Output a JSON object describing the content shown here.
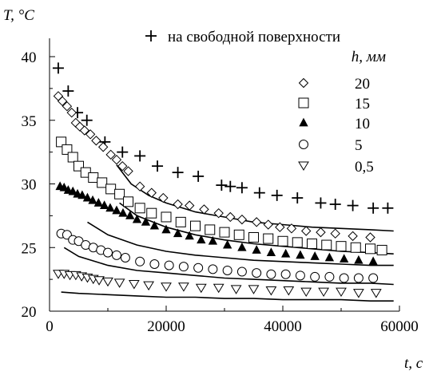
{
  "chart_data": {
    "type": "scatter",
    "xlabel": "t, с",
    "ylabel": "T, °С",
    "xlim": [
      0,
      60000
    ],
    "ylim": [
      20,
      42
    ],
    "x_ticks": [
      "0",
      "20000",
      "40000",
      "60000"
    ],
    "y_ticks": [
      "20",
      "25",
      "30",
      "35",
      "40"
    ],
    "legend_title": "h, мм",
    "legend_position": "top-right",
    "grid": false,
    "series": [
      {
        "name": "на свободной поверхности",
        "marker": "plus",
        "points": [
          [
            1500,
            39.1
          ],
          [
            3200,
            37.3
          ],
          [
            4800,
            35.6
          ],
          [
            6400,
            35.0
          ],
          [
            9500,
            33.3
          ],
          [
            12500,
            32.5
          ],
          [
            15500,
            32.2
          ],
          [
            18500,
            31.4
          ],
          [
            22000,
            30.9
          ],
          [
            25500,
            30.6
          ],
          [
            29500,
            29.9
          ],
          [
            31000,
            29.8
          ],
          [
            33000,
            29.7
          ],
          [
            36000,
            29.3
          ],
          [
            39000,
            29.1
          ],
          [
            42500,
            28.9
          ],
          [
            46500,
            28.5
          ],
          [
            49000,
            28.4
          ],
          [
            52000,
            28.3
          ],
          [
            55500,
            28.1
          ],
          [
            58000,
            28.1
          ]
        ]
      },
      {
        "name": "20",
        "marker": "diamond",
        "points": [
          [
            1500,
            36.9
          ],
          [
            2200,
            36.5
          ],
          [
            3000,
            36.1
          ],
          [
            3800,
            35.6
          ],
          [
            4500,
            34.8
          ],
          [
            5200,
            34.5
          ],
          [
            6000,
            34.2
          ],
          [
            7000,
            33.9
          ],
          [
            8000,
            33.4
          ],
          [
            9200,
            32.9
          ],
          [
            10500,
            32.3
          ],
          [
            11500,
            31.9
          ],
          [
            12500,
            31.4
          ],
          [
            13500,
            31.0
          ],
          [
            15500,
            29.8
          ],
          [
            17500,
            29.3
          ],
          [
            19500,
            28.9
          ],
          [
            22000,
            28.4
          ],
          [
            24000,
            28.3
          ],
          [
            26500,
            28.0
          ],
          [
            29000,
            27.7
          ],
          [
            31000,
            27.4
          ],
          [
            33000,
            27.2
          ],
          [
            35500,
            27.0
          ],
          [
            37500,
            26.8
          ],
          [
            39500,
            26.6
          ],
          [
            41500,
            26.5
          ],
          [
            44000,
            26.3
          ],
          [
            46500,
            26.2
          ],
          [
            49000,
            26.1
          ],
          [
            52000,
            25.9
          ],
          [
            55000,
            25.8
          ]
        ]
      },
      {
        "name": "15",
        "marker": "square",
        "points": [
          [
            2000,
            33.3
          ],
          [
            3000,
            32.7
          ],
          [
            4000,
            32.1
          ],
          [
            5000,
            31.4
          ],
          [
            6200,
            30.9
          ],
          [
            7500,
            30.5
          ],
          [
            9000,
            30.1
          ],
          [
            10500,
            29.6
          ],
          [
            12000,
            29.2
          ],
          [
            13500,
            28.6
          ],
          [
            15500,
            28.1
          ],
          [
            17500,
            27.7
          ],
          [
            20000,
            27.4
          ],
          [
            22500,
            27.0
          ],
          [
            25000,
            26.7
          ],
          [
            27500,
            26.4
          ],
          [
            30000,
            26.2
          ],
          [
            32500,
            26.0
          ],
          [
            35000,
            25.8
          ],
          [
            37500,
            25.7
          ],
          [
            40000,
            25.5
          ],
          [
            42500,
            25.4
          ],
          [
            45000,
            25.3
          ],
          [
            47500,
            25.2
          ],
          [
            50000,
            25.1
          ],
          [
            52500,
            25.0
          ],
          [
            55000,
            24.9
          ],
          [
            57000,
            24.8
          ]
        ]
      },
      {
        "name": "10",
        "marker": "triangle-up",
        "points": [
          [
            1800,
            29.8
          ],
          [
            2500,
            29.7
          ],
          [
            3200,
            29.5
          ],
          [
            4000,
            29.4
          ],
          [
            4800,
            29.2
          ],
          [
            5600,
            29.1
          ],
          [
            6500,
            28.9
          ],
          [
            7400,
            28.7
          ],
          [
            8400,
            28.5
          ],
          [
            9400,
            28.3
          ],
          [
            10400,
            28.1
          ],
          [
            11500,
            27.9
          ],
          [
            12600,
            27.7
          ],
          [
            13800,
            27.5
          ],
          [
            15000,
            27.2
          ],
          [
            16500,
            27.0
          ],
          [
            18000,
            26.7
          ],
          [
            20000,
            26.4
          ],
          [
            22000,
            26.1
          ],
          [
            24000,
            25.9
          ],
          [
            26000,
            25.6
          ],
          [
            28000,
            25.5
          ],
          [
            30500,
            25.2
          ],
          [
            33000,
            25.0
          ],
          [
            35500,
            24.8
          ],
          [
            38000,
            24.6
          ],
          [
            40500,
            24.5
          ],
          [
            43000,
            24.4
          ],
          [
            45500,
            24.3
          ],
          [
            48000,
            24.2
          ],
          [
            50500,
            24.1
          ],
          [
            53000,
            24.0
          ],
          [
            55500,
            23.9
          ]
        ]
      },
      {
        "name": "5",
        "marker": "circle",
        "points": [
          [
            2000,
            26.1
          ],
          [
            3000,
            26.0
          ],
          [
            4000,
            25.6
          ],
          [
            5000,
            25.5
          ],
          [
            6200,
            25.2
          ],
          [
            7500,
            25.0
          ],
          [
            8800,
            24.8
          ],
          [
            10000,
            24.6
          ],
          [
            11500,
            24.4
          ],
          [
            13000,
            24.2
          ],
          [
            15500,
            23.9
          ],
          [
            18000,
            23.7
          ],
          [
            20500,
            23.6
          ],
          [
            23000,
            23.5
          ],
          [
            25500,
            23.4
          ],
          [
            28000,
            23.3
          ],
          [
            30500,
            23.2
          ],
          [
            33000,
            23.1
          ],
          [
            35500,
            23.0
          ],
          [
            38000,
            22.9
          ],
          [
            40500,
            22.9
          ],
          [
            43000,
            22.8
          ],
          [
            45500,
            22.7
          ],
          [
            48000,
            22.7
          ],
          [
            50500,
            22.6
          ],
          [
            53000,
            22.6
          ],
          [
            55500,
            22.6
          ]
        ]
      },
      {
        "name": "0,5",
        "marker": "triangle-down",
        "points": [
          [
            1500,
            22.9
          ],
          [
            2500,
            22.9
          ],
          [
            3500,
            22.8
          ],
          [
            4500,
            22.8
          ],
          [
            5500,
            22.7
          ],
          [
            6500,
            22.6
          ],
          [
            7500,
            22.5
          ],
          [
            8500,
            22.4
          ],
          [
            10000,
            22.3
          ],
          [
            12000,
            22.2
          ],
          [
            14500,
            22.1
          ],
          [
            17000,
            22.0
          ],
          [
            20000,
            21.9
          ],
          [
            23000,
            21.9
          ],
          [
            26000,
            21.8
          ],
          [
            29000,
            21.8
          ],
          [
            32000,
            21.7
          ],
          [
            35000,
            21.7
          ],
          [
            38000,
            21.6
          ],
          [
            41000,
            21.6
          ],
          [
            44000,
            21.5
          ],
          [
            47000,
            21.5
          ],
          [
            50000,
            21.5
          ],
          [
            53000,
            21.4
          ],
          [
            56000,
            21.4
          ]
        ]
      }
    ],
    "curves": [
      {
        "points": [
          [
            11500,
            31.5
          ],
          [
            14000,
            30.0
          ],
          [
            17000,
            29.1
          ],
          [
            20000,
            28.5
          ],
          [
            25000,
            27.8
          ],
          [
            30000,
            27.4
          ],
          [
            35000,
            27.0
          ],
          [
            40000,
            26.8
          ],
          [
            45000,
            26.6
          ],
          [
            50000,
            26.5
          ],
          [
            55000,
            26.4
          ],
          [
            59000,
            26.3
          ]
        ]
      },
      {
        "points": [
          [
            12000,
            28.5
          ],
          [
            15000,
            27.5
          ],
          [
            20000,
            26.6
          ],
          [
            25000,
            26.0
          ],
          [
            30000,
            25.6
          ],
          [
            35000,
            25.3
          ],
          [
            40000,
            25.1
          ],
          [
            45000,
            24.9
          ],
          [
            50000,
            24.7
          ],
          [
            55000,
            24.6
          ],
          [
            59000,
            24.5
          ]
        ]
      },
      {
        "points": [
          [
            6500,
            27.0
          ],
          [
            10000,
            26.0
          ],
          [
            15000,
            25.2
          ],
          [
            20000,
            24.7
          ],
          [
            25000,
            24.4
          ],
          [
            30000,
            24.2
          ],
          [
            35000,
            24.0
          ],
          [
            40000,
            23.9
          ],
          [
            45000,
            23.8
          ],
          [
            50000,
            23.7
          ],
          [
            55000,
            23.6
          ],
          [
            59000,
            23.6
          ]
        ]
      },
      {
        "points": [
          [
            2500,
            25.0
          ],
          [
            5000,
            24.3
          ],
          [
            10000,
            23.6
          ],
          [
            15000,
            23.2
          ],
          [
            20000,
            23.0
          ],
          [
            25000,
            22.8
          ],
          [
            30000,
            22.6
          ],
          [
            35000,
            22.5
          ],
          [
            40000,
            22.4
          ],
          [
            45000,
            22.3
          ],
          [
            50000,
            22.2
          ],
          [
            55000,
            22.2
          ],
          [
            59000,
            22.1
          ]
        ]
      },
      {
        "points": [
          [
            2000,
            21.5
          ],
          [
            5000,
            21.4
          ],
          [
            10000,
            21.3
          ],
          [
            15000,
            21.2
          ],
          [
            20000,
            21.1
          ],
          [
            25000,
            21.1
          ],
          [
            30000,
            21.0
          ],
          [
            35000,
            21.0
          ],
          [
            40000,
            20.9
          ],
          [
            45000,
            20.9
          ],
          [
            50000,
            20.9
          ],
          [
            55000,
            20.8
          ],
          [
            59000,
            20.8
          ]
        ]
      }
    ]
  }
}
